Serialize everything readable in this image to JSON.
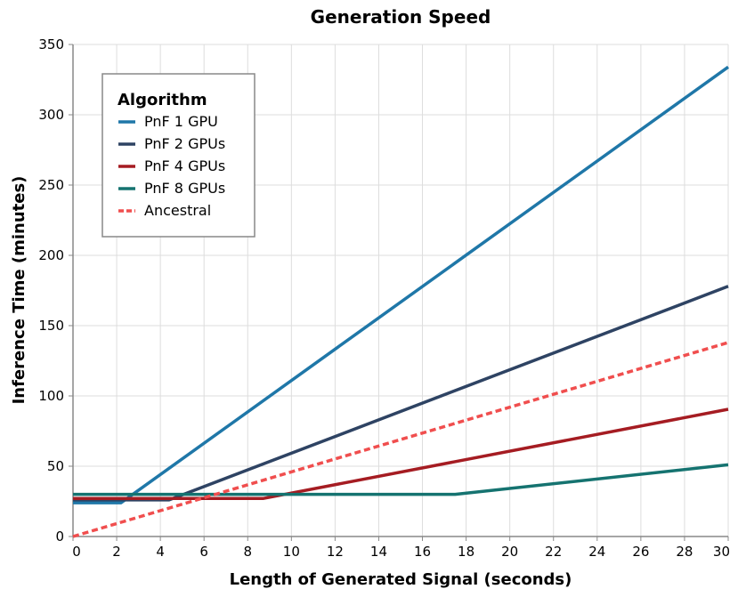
{
  "chart_data": {
    "type": "line",
    "title": "Generation Speed",
    "xlabel": "Length of Generated Signal (seconds)",
    "ylabel": "Inference Time (minutes)",
    "xlim": [
      0,
      30
    ],
    "ylim": [
      0,
      350
    ],
    "xticks": [
      0,
      2,
      4,
      6,
      8,
      10,
      12,
      14,
      16,
      18,
      20,
      22,
      24,
      26,
      28,
      30
    ],
    "yticks": [
      0,
      50,
      100,
      150,
      200,
      250,
      300,
      350
    ],
    "grid": true,
    "legend": {
      "title": "Algorithm",
      "position": "top-left"
    },
    "series": [
      {
        "name": "PnF 1 GPU",
        "color": "#1f77a8",
        "dash": false,
        "x": [
          0,
          2.2,
          30
        ],
        "y": [
          24,
          24,
          334
        ]
      },
      {
        "name": "PnF 2 GPUs",
        "color": "#2e4363",
        "dash": false,
        "x": [
          0,
          4.4,
          30
        ],
        "y": [
          26,
          26,
          178
        ]
      },
      {
        "name": "PnF 4 GPUs",
        "color": "#a51c22",
        "dash": false,
        "x": [
          0,
          8.7,
          30
        ],
        "y": [
          27,
          27,
          90.5
        ]
      },
      {
        "name": "PnF 8 GPUs",
        "color": "#157370",
        "dash": false,
        "x": [
          0,
          17.5,
          30
        ],
        "y": [
          30,
          30,
          51
        ]
      },
      {
        "name": "Ancestral",
        "color": "#f04e4e",
        "dash": true,
        "x": [
          0,
          30
        ],
        "y": [
          0,
          138
        ]
      }
    ]
  }
}
